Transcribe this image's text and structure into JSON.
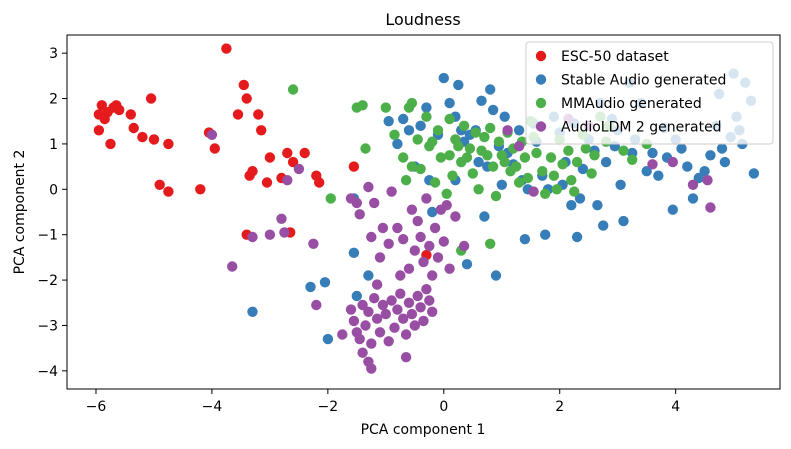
{
  "chart_data": {
    "type": "scatter",
    "title": "Loudness",
    "xlabel": "PCA component 1",
    "ylabel": "PCA component 2",
    "xlim": [
      -6.5,
      5.8
    ],
    "ylim": [
      -4.4,
      3.4
    ],
    "xticks": [
      -6,
      -4,
      -2,
      0,
      2,
      4
    ],
    "yticks": [
      -4,
      -3,
      -2,
      -1,
      0,
      1,
      2,
      3
    ],
    "xtick_labels": [
      "−6",
      "−4",
      "−2",
      "0",
      "2",
      "4"
    ],
    "ytick_labels": [
      "−4",
      "−3",
      "−2",
      "−1",
      "0",
      "1",
      "2",
      "3"
    ],
    "grid": false,
    "legend_position": "top-right",
    "series": [
      {
        "name": "ESC-50 dataset",
        "color": "#e41a1c",
        "points": [
          [
            -5.95,
            1.3
          ],
          [
            -5.95,
            1.65
          ],
          [
            -5.9,
            1.85
          ],
          [
            -5.85,
            1.55
          ],
          [
            -5.8,
            1.7
          ],
          [
            -5.75,
            1.0
          ],
          [
            -5.7,
            1.8
          ],
          [
            -5.65,
            1.85
          ],
          [
            -5.6,
            1.75
          ],
          [
            -5.4,
            1.65
          ],
          [
            -5.35,
            1.35
          ],
          [
            -5.2,
            1.15
          ],
          [
            -5.05,
            2.0
          ],
          [
            -5.0,
            1.1
          ],
          [
            -4.75,
            1.0
          ],
          [
            -4.9,
            0.1
          ],
          [
            -4.75,
            -0.05
          ],
          [
            -4.2,
            0.0
          ],
          [
            -4.05,
            1.25
          ],
          [
            -3.95,
            0.9
          ],
          [
            -3.75,
            3.1
          ],
          [
            -3.55,
            1.65
          ],
          [
            -3.45,
            2.3
          ],
          [
            -3.4,
            2.0
          ],
          [
            -3.35,
            0.3
          ],
          [
            -3.3,
            0.4
          ],
          [
            -3.2,
            1.65
          ],
          [
            -3.15,
            1.3
          ],
          [
            -3.05,
            0.15
          ],
          [
            -3.0,
            0.7
          ],
          [
            -2.8,
            0.25
          ],
          [
            -2.7,
            0.8
          ],
          [
            -2.6,
            0.6
          ],
          [
            -2.4,
            0.8
          ],
          [
            -2.2,
            0.3
          ],
          [
            -2.15,
            0.15
          ],
          [
            -3.4,
            -1.0
          ],
          [
            -2.65,
            -0.95
          ],
          [
            -1.55,
            0.5
          ],
          [
            -0.3,
            -1.45
          ]
        ]
      },
      {
        "name": "Stable Audio generated",
        "color": "#377eb8",
        "points": [
          [
            -3.3,
            -2.7
          ],
          [
            -2.3,
            -2.15
          ],
          [
            -2.05,
            -2.05
          ],
          [
            -2.0,
            -3.3
          ],
          [
            -1.55,
            -1.4
          ],
          [
            -1.5,
            -2.35
          ],
          [
            -1.55,
            -0.2
          ],
          [
            -1.3,
            -1.9
          ],
          [
            -0.95,
            1.5
          ],
          [
            -0.8,
            1.0
          ],
          [
            -0.7,
            1.55
          ],
          [
            -0.6,
            1.3
          ],
          [
            -0.5,
            0.5
          ],
          [
            -0.4,
            1.4
          ],
          [
            -0.3,
            1.8
          ],
          [
            -0.25,
            0.2
          ],
          [
            -0.2,
            -0.5
          ],
          [
            -0.1,
            1.2
          ],
          [
            0.0,
            2.45
          ],
          [
            0.1,
            1.9
          ],
          [
            0.2,
            1.6
          ],
          [
            0.2,
            0.2
          ],
          [
            0.25,
            2.3
          ],
          [
            0.3,
            1.3
          ],
          [
            0.35,
            1.05
          ],
          [
            0.4,
            -1.65
          ],
          [
            0.45,
            1.2
          ],
          [
            0.55,
            1.3
          ],
          [
            0.6,
            0.6
          ],
          [
            0.65,
            1.95
          ],
          [
            0.7,
            -0.6
          ],
          [
            0.75,
            0.5
          ],
          [
            0.8,
            2.2
          ],
          [
            0.85,
            1.75
          ],
          [
            0.9,
            -1.9
          ],
          [
            0.95,
            0.95
          ],
          [
            1.0,
            0.1
          ],
          [
            1.05,
            1.6
          ],
          [
            1.1,
            0.8
          ],
          [
            1.2,
            0.55
          ],
          [
            1.3,
            1.3
          ],
          [
            1.35,
            0.2
          ],
          [
            1.4,
            -1.1
          ],
          [
            1.45,
            0.0
          ],
          [
            1.55,
            1.45
          ],
          [
            1.6,
            1.05
          ],
          [
            1.7,
            0.3
          ],
          [
            1.75,
            -1.0
          ],
          [
            1.8,
            0.0
          ],
          [
            1.9,
            1.6
          ],
          [
            2.0,
            1.25
          ],
          [
            2.05,
            0.1
          ],
          [
            2.1,
            0.6
          ],
          [
            2.2,
            -0.35
          ],
          [
            2.25,
            1.45
          ],
          [
            2.3,
            -1.05
          ],
          [
            2.35,
            -0.2
          ],
          [
            2.4,
            0.45
          ],
          [
            2.5,
            1.1
          ],
          [
            2.6,
            0.85
          ],
          [
            2.65,
            -0.35
          ],
          [
            2.7,
            1.9
          ],
          [
            2.75,
            -0.8
          ],
          [
            2.8,
            0.6
          ],
          [
            2.9,
            1.55
          ],
          [
            2.95,
            0.95
          ],
          [
            3.0,
            1.3
          ],
          [
            3.05,
            0.1
          ],
          [
            3.1,
            -0.7
          ],
          [
            3.2,
            2.35
          ],
          [
            3.25,
            0.8
          ],
          [
            3.3,
            1.1
          ],
          [
            3.4,
            1.9
          ],
          [
            3.5,
            0.4
          ],
          [
            3.6,
            0.8
          ],
          [
            3.7,
            0.3
          ],
          [
            3.8,
            1.35
          ],
          [
            3.85,
            0.7
          ],
          [
            3.95,
            -0.45
          ],
          [
            4.0,
            1.1
          ],
          [
            4.1,
            0.9
          ],
          [
            4.2,
            0.5
          ],
          [
            4.3,
            -0.2
          ],
          [
            4.4,
            0.25
          ],
          [
            4.5,
            0.4
          ],
          [
            4.6,
            0.75
          ],
          [
            4.7,
            1.4
          ],
          [
            4.75,
            2.1
          ],
          [
            4.8,
            0.9
          ],
          [
            4.85,
            0.6
          ],
          [
            4.95,
            1.15
          ],
          [
            5.0,
            2.55
          ],
          [
            5.05,
            1.6
          ],
          [
            5.1,
            1.3
          ],
          [
            5.15,
            1.0
          ],
          [
            5.2,
            2.35
          ],
          [
            5.3,
            1.95
          ],
          [
            5.35,
            0.35
          ]
        ]
      },
      {
        "name": "MMAudio generated",
        "color": "#4daf4a",
        "points": [
          [
            -2.6,
            2.2
          ],
          [
            -1.95,
            -0.2
          ],
          [
            -1.4,
            1.85
          ],
          [
            -1.5,
            1.8
          ],
          [
            -1.35,
            0.9
          ],
          [
            -1.0,
            1.8
          ],
          [
            -0.85,
            1.2
          ],
          [
            -0.7,
            0.7
          ],
          [
            -0.65,
            0.2
          ],
          [
            -0.6,
            1.8
          ],
          [
            -0.55,
            1.9
          ],
          [
            -0.45,
            1.1
          ],
          [
            -0.4,
            0.45
          ],
          [
            -0.3,
            1.6
          ],
          [
            -0.25,
            0.95
          ],
          [
            -0.15,
            0.15
          ],
          [
            -0.1,
            1.3
          ],
          [
            -0.05,
            0.7
          ],
          [
            0.05,
            -0.1
          ],
          [
            0.1,
            1.55
          ],
          [
            0.1,
            0.75
          ],
          [
            0.15,
            0.3
          ],
          [
            0.2,
            1.1
          ],
          [
            0.25,
            0.95
          ],
          [
            0.3,
            0.6
          ],
          [
            0.35,
            1.4
          ],
          [
            0.4,
            0.7
          ],
          [
            0.45,
            0.9
          ],
          [
            0.5,
            0.35
          ],
          [
            0.55,
            1.25
          ],
          [
            0.6,
            0.0
          ],
          [
            0.65,
            0.85
          ],
          [
            0.7,
            1.15
          ],
          [
            0.75,
            0.75
          ],
          [
            0.8,
            1.35
          ],
          [
            0.85,
            0.5
          ],
          [
            0.9,
            -0.15
          ],
          [
            0.95,
            1.05
          ],
          [
            1.0,
            0.75
          ],
          [
            1.05,
            0.6
          ],
          [
            1.1,
            1.25
          ],
          [
            1.15,
            0.4
          ],
          [
            1.2,
            0.9
          ],
          [
            1.25,
            0.5
          ],
          [
            1.3,
            0.15
          ],
          [
            1.35,
            1.05
          ],
          [
            1.4,
            0.7
          ],
          [
            1.45,
            0.25
          ],
          [
            1.5,
            1.5
          ],
          [
            1.55,
            1.15
          ],
          [
            1.6,
            0.8
          ],
          [
            1.7,
            0.4
          ],
          [
            1.75,
            -0.1
          ],
          [
            1.85,
            0.7
          ],
          [
            1.9,
            0.3
          ],
          [
            1.95,
            0.0
          ],
          [
            2.0,
            1.1
          ],
          [
            2.05,
            0.55
          ],
          [
            2.15,
            0.85
          ],
          [
            2.2,
            0.2
          ],
          [
            2.25,
            -0.05
          ],
          [
            2.3,
            0.6
          ],
          [
            2.4,
            1.2
          ],
          [
            2.45,
            0.9
          ],
          [
            2.55,
            0.35
          ],
          [
            2.6,
            0.75
          ],
          [
            2.7,
            1.6
          ],
          [
            2.8,
            1.05
          ],
          [
            2.85,
            1.4
          ],
          [
            3.1,
            0.85
          ],
          [
            3.25,
            0.65
          ],
          [
            3.5,
            1.0
          ],
          [
            0.3,
            -1.35
          ],
          [
            0.8,
            -1.2
          ],
          [
            -0.55,
            0.5
          ],
          [
            -0.2,
            1.05
          ]
        ]
      },
      {
        "name": "AudioLDM 2 generated",
        "color": "#984ea3",
        "points": [
          [
            -4.0,
            1.2
          ],
          [
            -3.65,
            -1.7
          ],
          [
            -3.3,
            -1.05
          ],
          [
            -3.0,
            -1.0
          ],
          [
            -2.8,
            -0.65
          ],
          [
            -2.75,
            -0.95
          ],
          [
            -2.7,
            0.2
          ],
          [
            -2.5,
            0.45
          ],
          [
            -2.25,
            -1.2
          ],
          [
            -2.2,
            -2.55
          ],
          [
            -1.6,
            -0.2
          ],
          [
            -1.5,
            -0.3
          ],
          [
            -1.45,
            -0.55
          ],
          [
            -1.3,
            0.05
          ],
          [
            -1.25,
            -1.05
          ],
          [
            -1.2,
            -0.3
          ],
          [
            -1.15,
            -2.1
          ],
          [
            -1.1,
            -1.5
          ],
          [
            -1.05,
            -0.85
          ],
          [
            -0.95,
            -1.2
          ],
          [
            -0.9,
            -0.05
          ],
          [
            -0.8,
            -0.85
          ],
          [
            -0.75,
            -1.9
          ],
          [
            -0.7,
            -1.1
          ],
          [
            -0.6,
            -1.75
          ],
          [
            -0.55,
            -0.45
          ],
          [
            -0.5,
            -1.35
          ],
          [
            -0.45,
            -0.7
          ],
          [
            -0.4,
            -1.05
          ],
          [
            -0.35,
            -1.6
          ],
          [
            -0.3,
            -0.2
          ],
          [
            -0.25,
            -1.25
          ],
          [
            -0.2,
            -1.9
          ],
          [
            -0.15,
            -0.85
          ],
          [
            -0.1,
            -1.5
          ],
          [
            -0.05,
            -0.45
          ],
          [
            0.0,
            -1.15
          ],
          [
            0.05,
            -0.35
          ],
          [
            0.1,
            -1.75
          ],
          [
            0.2,
            -0.6
          ],
          [
            0.35,
            -1.25
          ],
          [
            -1.6,
            -2.65
          ],
          [
            -1.55,
            -2.9
          ],
          [
            -1.5,
            -3.15
          ],
          [
            -1.45,
            -3.3
          ],
          [
            -1.4,
            -2.55
          ],
          [
            -1.35,
            -3.0
          ],
          [
            -1.3,
            -2.7
          ],
          [
            -1.25,
            -3.4
          ],
          [
            -1.2,
            -2.4
          ],
          [
            -1.15,
            -2.85
          ],
          [
            -1.1,
            -3.15
          ],
          [
            -1.05,
            -2.55
          ],
          [
            -1.0,
            -2.75
          ],
          [
            -0.95,
            -3.35
          ],
          [
            -0.9,
            -2.45
          ],
          [
            -0.85,
            -3.05
          ],
          [
            -0.8,
            -2.65
          ],
          [
            -0.75,
            -2.3
          ],
          [
            -0.7,
            -2.85
          ],
          [
            -0.65,
            -3.2
          ],
          [
            -0.6,
            -2.5
          ],
          [
            -0.55,
            -2.75
          ],
          [
            -0.5,
            -3.0
          ],
          [
            -0.45,
            -2.35
          ],
          [
            -0.4,
            -2.6
          ],
          [
            -0.35,
            -2.9
          ],
          [
            -0.3,
            -2.2
          ],
          [
            -0.25,
            -2.45
          ],
          [
            -0.2,
            -2.7
          ],
          [
            -1.3,
            -3.8
          ],
          [
            -1.25,
            -3.95
          ],
          [
            -1.4,
            -3.6
          ],
          [
            -0.65,
            -3.7
          ],
          [
            -1.75,
            -3.2
          ],
          [
            1.1,
            1.3
          ],
          [
            1.3,
            0.95
          ],
          [
            1.55,
            -0.05
          ],
          [
            2.15,
            1.55
          ],
          [
            2.5,
            1.4
          ],
          [
            3.6,
            0.55
          ],
          [
            3.95,
            0.6
          ],
          [
            4.3,
            0.1
          ],
          [
            4.55,
            0.2
          ],
          [
            4.6,
            -0.4
          ]
        ]
      }
    ]
  }
}
